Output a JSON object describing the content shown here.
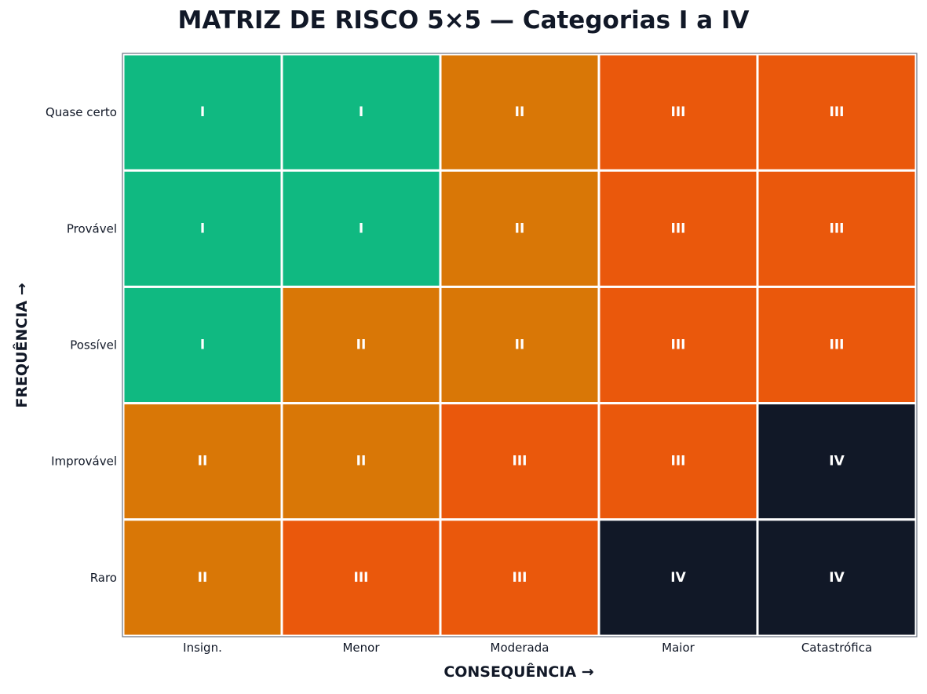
{
  "chart_data": {
    "type": "heatmap",
    "title": "MATRIZ DE RISCO 5×5 — Categorias I a IV",
    "xlabel": "CONSEQUÊNCIA →",
    "ylabel": "FREQUÊNCIA →",
    "x_categories": [
      "Insign.",
      "Menor",
      "Moderada",
      "Maior",
      "Catastrófica"
    ],
    "y_categories": [
      "Quase certo",
      "Provável",
      "Possível",
      "Improvável",
      "Raro"
    ],
    "values": [
      [
        "I",
        "I",
        "II",
        "III",
        "III"
      ],
      [
        "I",
        "I",
        "II",
        "III",
        "III"
      ],
      [
        "I",
        "II",
        "II",
        "III",
        "III"
      ],
      [
        "II",
        "II",
        "III",
        "III",
        "IV"
      ],
      [
        "II",
        "III",
        "III",
        "IV",
        "IV"
      ]
    ],
    "category_colors": {
      "I": "#10b981",
      "II": "#d97706",
      "III": "#ea580c",
      "IV": "#111827"
    },
    "grid": true
  }
}
